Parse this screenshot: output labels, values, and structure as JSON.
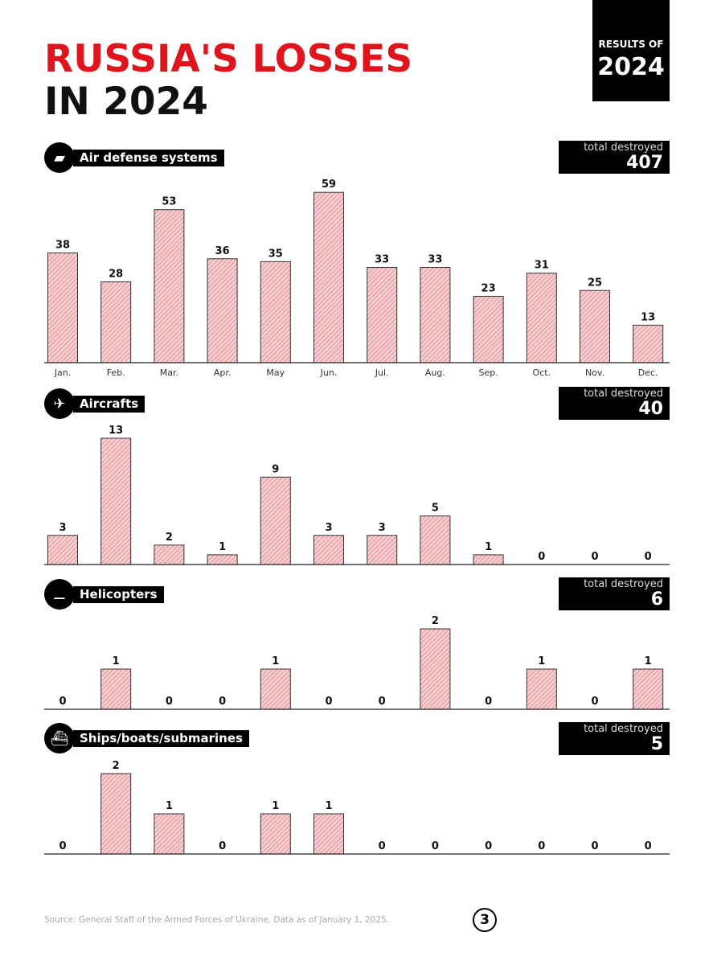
{
  "title_line1": "RUSSIA'S LOSSES",
  "title_line2": "IN 2024",
  "results_badge": {
    "label": "RESULTS OF",
    "year": "2024"
  },
  "source": "Source: General Staff of the Armed Forces of Ukraine. Data as of January 1, 2025.",
  "page_number": "3",
  "colors": {
    "title_red": "#e0141c",
    "bar_fill": "#f6cfd1",
    "bar_hatch": "#d9646b",
    "bar_outline": "#333333"
  },
  "chart_data": [
    {
      "type": "bar",
      "title": "Air defense systems",
      "icon": "air-defense-icon",
      "total_label": "total destroyed",
      "total": "407",
      "categories": [
        "Jan.",
        "Feb.",
        "Mar.",
        "Apr.",
        "May",
        "Jun.",
        "Jul.",
        "Aug.",
        "Sep.",
        "Oct.",
        "Nov.",
        "Dec."
      ],
      "values": [
        38,
        28,
        53,
        36,
        35,
        59,
        33,
        33,
        23,
        31,
        25,
        13
      ],
      "show_categories": true
    },
    {
      "type": "bar",
      "title": "Aircrafts",
      "icon": "aircraft-icon",
      "total_label": "total destroyed",
      "total": "40",
      "categories": [
        "Jan.",
        "Feb.",
        "Mar.",
        "Apr.",
        "May",
        "Jun.",
        "Jul.",
        "Aug.",
        "Sep.",
        "Oct.",
        "Nov.",
        "Dec."
      ],
      "values": [
        3,
        13,
        2,
        1,
        9,
        3,
        3,
        5,
        1,
        0,
        0,
        0
      ],
      "show_categories": false
    },
    {
      "type": "bar",
      "title": "Helicopters",
      "icon": "helicopter-icon",
      "total_label": "total destroyed",
      "total": "6",
      "categories": [
        "Jan.",
        "Feb.",
        "Mar.",
        "Apr.",
        "May",
        "Jun.",
        "Jul.",
        "Aug.",
        "Sep.",
        "Oct.",
        "Nov.",
        "Dec."
      ],
      "values": [
        0,
        1,
        0,
        0,
        1,
        0,
        0,
        2,
        0,
        1,
        0,
        1
      ],
      "show_categories": false
    },
    {
      "type": "bar",
      "title": "Ships/boats/submarines",
      "icon": "ship-icon",
      "total_label": "total destroyed",
      "total": "5",
      "categories": [
        "Jan.",
        "Feb.",
        "Mar.",
        "Apr.",
        "May",
        "Jun.",
        "Jul.",
        "Aug.",
        "Sep.",
        "Oct.",
        "Nov.",
        "Dec."
      ],
      "values": [
        0,
        2,
        1,
        0,
        1,
        1,
        0,
        0,
        0,
        0,
        0,
        0
      ],
      "show_categories": false
    }
  ]
}
